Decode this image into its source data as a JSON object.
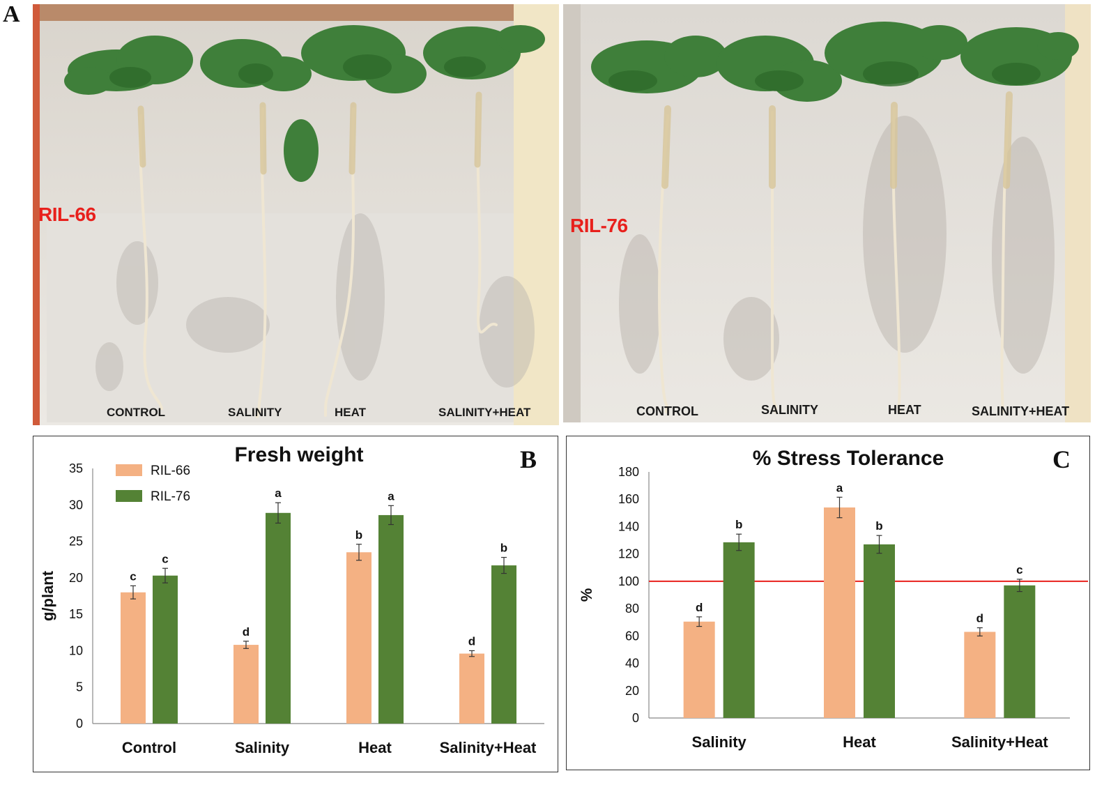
{
  "panel_a": {
    "letter": "A",
    "left_photo": {
      "genotype": "RIL-66",
      "treatments": [
        "CONTROL",
        "SALINITY",
        "HEAT",
        "SALINITY+HEAT"
      ]
    },
    "right_photo": {
      "genotype": "RIL-76",
      "treatments": [
        "CONTROL",
        "SALINITY",
        "HEAT",
        "SALINITY+HEAT"
      ]
    }
  },
  "colors": {
    "ril66": "#f4b183",
    "ril76": "#548235",
    "reference_line": "#e8201c",
    "label_red": "#e8201c"
  },
  "chart_data": [
    {
      "panel": "B",
      "type": "bar",
      "title": "Fresh weight",
      "xlabel": "",
      "ylabel": "g/plant",
      "ylim": [
        0,
        35
      ],
      "yticks": [
        0,
        5,
        10,
        15,
        20,
        25,
        30,
        35
      ],
      "categories": [
        "Control",
        "Salinity",
        "Heat",
        "Salinity+Heat"
      ],
      "legend_position": "top-left",
      "series": [
        {
          "name": "RIL-66",
          "values": [
            18.0,
            10.8,
            23.5,
            9.6
          ],
          "errors": [
            0.9,
            0.5,
            1.1,
            0.4
          ],
          "letters": [
            "c",
            "d",
            "b",
            "d"
          ]
        },
        {
          "name": "RIL-76",
          "values": [
            20.3,
            28.9,
            28.6,
            21.7
          ],
          "errors": [
            1.0,
            1.4,
            1.3,
            1.1
          ],
          "letters": [
            "c",
            "a",
            "a",
            "b"
          ]
        }
      ]
    },
    {
      "panel": "C",
      "type": "bar",
      "title": "% Stress Tolerance",
      "xlabel": "",
      "ylabel": "%",
      "ylim": [
        0,
        180
      ],
      "yticks": [
        0,
        20,
        40,
        60,
        80,
        100,
        120,
        140,
        160,
        180
      ],
      "categories": [
        "Salinity",
        "Heat",
        "Salinity+Heat"
      ],
      "reference_line": 100,
      "series": [
        {
          "name": "RIL-66",
          "values": [
            70.5,
            154,
            63
          ],
          "errors": [
            3.5,
            7.5,
            3.0
          ],
          "letters": [
            "d",
            "a",
            "d"
          ]
        },
        {
          "name": "RIL-76",
          "values": [
            128.5,
            127,
            97
          ],
          "errors": [
            6.0,
            6.5,
            4.5
          ],
          "letters": [
            "b",
            "b",
            "c"
          ]
        }
      ]
    }
  ]
}
